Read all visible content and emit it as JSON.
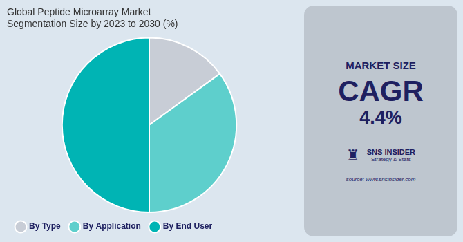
{
  "chart_data": {
    "type": "pie",
    "title": "Global Peptide Microarray Market\nSegmentation Size by 2023 to 2030 (%)",
    "categories": [
      "By Type",
      "By Application",
      "By End User"
    ],
    "values": [
      15,
      35,
      50
    ],
    "colors": [
      "#c8cdd6",
      "#5ecfcc",
      "#00b4b4"
    ],
    "legend": "bottom",
    "annotations": [
      "MARKET SIZE",
      "CAGR",
      "4.4%",
      "♜",
      "SNS INSIDER",
      "Strategy & Stats",
      "source: www.snsinsider.com"
    ]
  }
}
